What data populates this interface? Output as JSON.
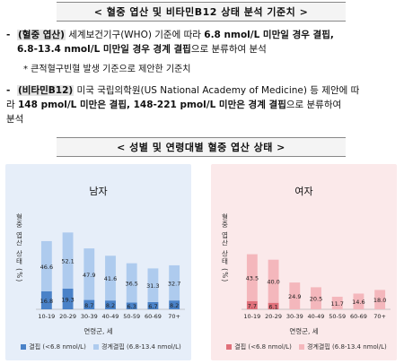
{
  "header": {
    "title1": "< 혈중 엽산 및 비타민B12 상태 분석 기준치 >",
    "title2": "< 성별 및 연령대별 혈중 엽산 상태 >"
  },
  "criteria": {
    "folate": {
      "bullet": "-",
      "tag": "(혈중 엽산)",
      "line1_a": " 세계보건기구(WHO) 기준",
      "line1_b": "에 따라 ",
      "line1_bold": "6.8 nmol/L 미만일 경우 결핍,",
      "line2_bold1": "6.8-13.4 nmol/L 미만일 경우 경계 결핍",
      "line2_rest": "으로 분류하여 분석",
      "note": "* 큰적혈구빈혈 발생 기준으로 제안한 기준치"
    },
    "b12": {
      "bullet": "-",
      "tag": "(비타민B12)",
      "line1": " 미국 국립의학원(US National Academy of Medicine) 등 제안에 따",
      "line2_a": "라 ",
      "line2_bold": "148 pmol/L 미만은 결핍, 148-221 pmol/L 미만은 경계 결핍",
      "line2_rest": "으로 분류하여",
      "line3": "분석"
    }
  },
  "chart_data": [
    {
      "type": "bar",
      "title": "남자",
      "categories": [
        "10-19",
        "20-29",
        "30-39",
        "40-49",
        "50-59",
        "60-69",
        "70+"
      ],
      "series": [
        {
          "name": "결핍 (<6.8 nmol/L)",
          "values": [
            16.8,
            19.3,
            8.7,
            8.2,
            6.3,
            6.7,
            8.2
          ],
          "color": "#4a82c8"
        },
        {
          "name": "경계결핍 (6.8-13.4 nmol/L)",
          "values": [
            46.6,
            52.1,
            47.9,
            41.6,
            36.5,
            31.3,
            32.7
          ],
          "color": "#aecbee"
        }
      ],
      "ylabel": "혈중 엽산 상태 (%)",
      "xlabel": "연령군, 세",
      "ylim": [
        0,
        100
      ],
      "stacked": true
    },
    {
      "type": "bar",
      "title": "여자",
      "categories": [
        "10-19",
        "20-29",
        "30-39",
        "40-49",
        "50-59",
        "60-69",
        "70+"
      ],
      "series": [
        {
          "name": "결핍 (<6.8 nmol/L)",
          "values": [
            7.7,
            6.1,
            0,
            0,
            0,
            0,
            0
          ],
          "color": "#e0707a"
        },
        {
          "name": "경계결핍 (6.8-13.4 nmol/L)",
          "values": [
            43.5,
            40.0,
            24.9,
            20.5,
            11.7,
            14.6,
            18.0
          ],
          "color": "#f4b7bc"
        }
      ],
      "ylabel": "혈중 엽산 상태 (%)",
      "xlabel": "연령군, 세",
      "ylim": [
        0,
        100
      ],
      "stacked": true
    }
  ]
}
